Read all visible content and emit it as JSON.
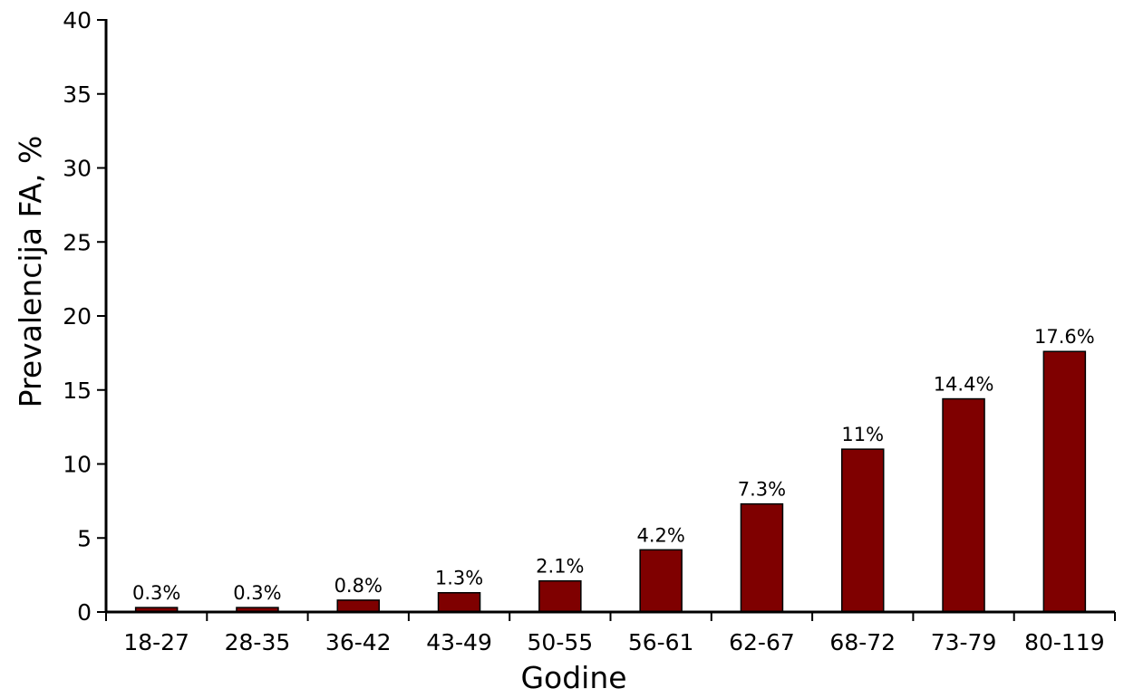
{
  "chart_data": {
    "type": "bar",
    "title": "",
    "xlabel": "Godine",
    "ylabel": "Prevalencija FA, %",
    "categories": [
      "18-27",
      "28-35",
      "36-42",
      "43-49",
      "50-55",
      "56-61",
      "62-67",
      "68-72",
      "73-79",
      "80-119"
    ],
    "values": [
      0.3,
      0.3,
      0.8,
      1.3,
      2.1,
      4.2,
      7.3,
      11,
      14.4,
      17.6
    ],
    "data_labels": [
      "0.3%",
      "0.3%",
      "0.8%",
      "1.3%",
      "2.1%",
      "4.2%",
      "7.3%",
      "11%",
      "14.4%",
      "17.6%"
    ],
    "ylim": [
      0,
      40
    ],
    "yticks": [
      0,
      5,
      10,
      15,
      20,
      25,
      30,
      35,
      40
    ],
    "grid": false,
    "legend": "none",
    "bar_color": "#7f0000"
  }
}
